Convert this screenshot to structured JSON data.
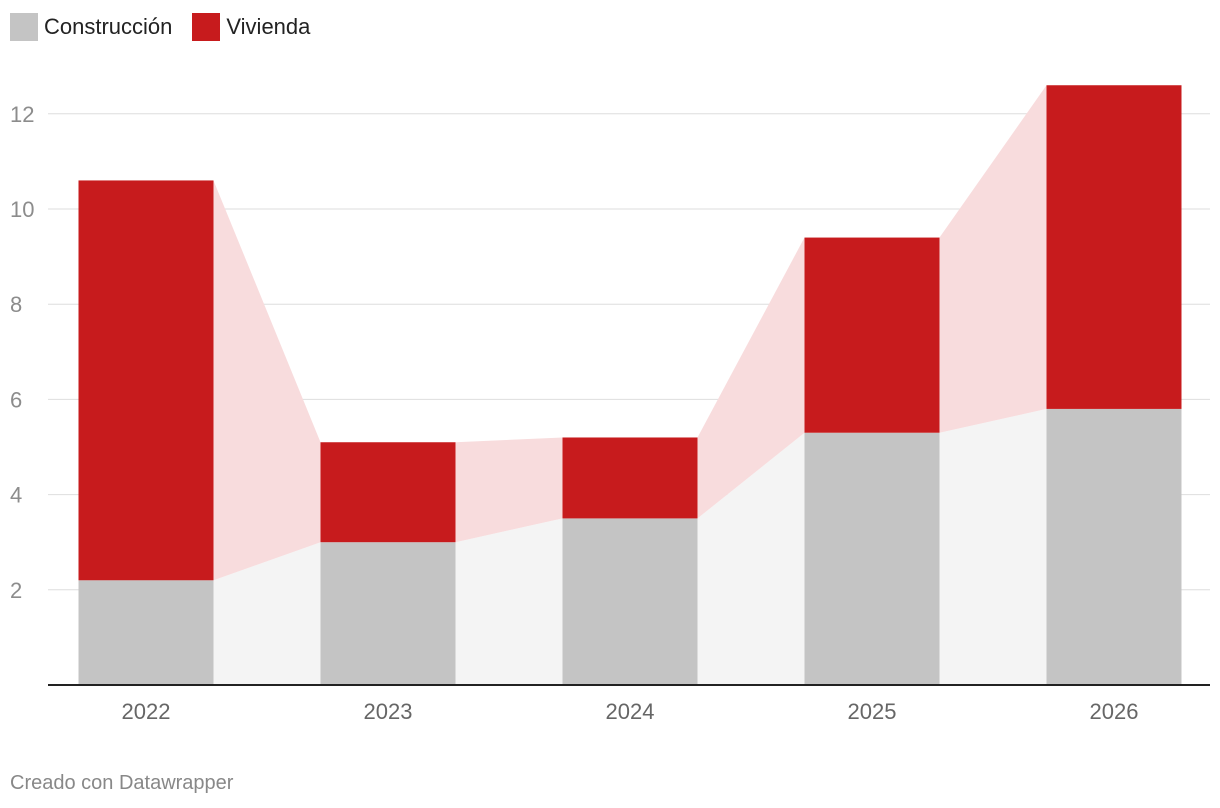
{
  "chart_data": {
    "type": "bar",
    "stacked": true,
    "categories": [
      "2022",
      "2023",
      "2024",
      "2025",
      "2026"
    ],
    "series": [
      {
        "name": "Construcción",
        "values": [
          2.2,
          3.0,
          3.5,
          5.3,
          5.8
        ],
        "color": "#c4c4c4"
      },
      {
        "name": "Vivienda",
        "values": [
          8.4,
          2.1,
          1.7,
          4.1,
          6.8
        ],
        "color": "#c71b1d"
      }
    ],
    "yticks": [
      2,
      4,
      6,
      8,
      10,
      12
    ],
    "ylim": [
      0,
      12.6
    ],
    "title": "",
    "xlabel": "",
    "ylabel": "",
    "legend_position": "top-left",
    "connector_colors": {
      "base": "#f4f4f4",
      "top": "#f8dcdd"
    }
  },
  "legend": {
    "items": [
      {
        "label": "Construcción",
        "color": "#c4c4c4"
      },
      {
        "label": "Vivienda",
        "color": "#c71b1d"
      }
    ]
  },
  "credit": "Creado con Datawrapper"
}
